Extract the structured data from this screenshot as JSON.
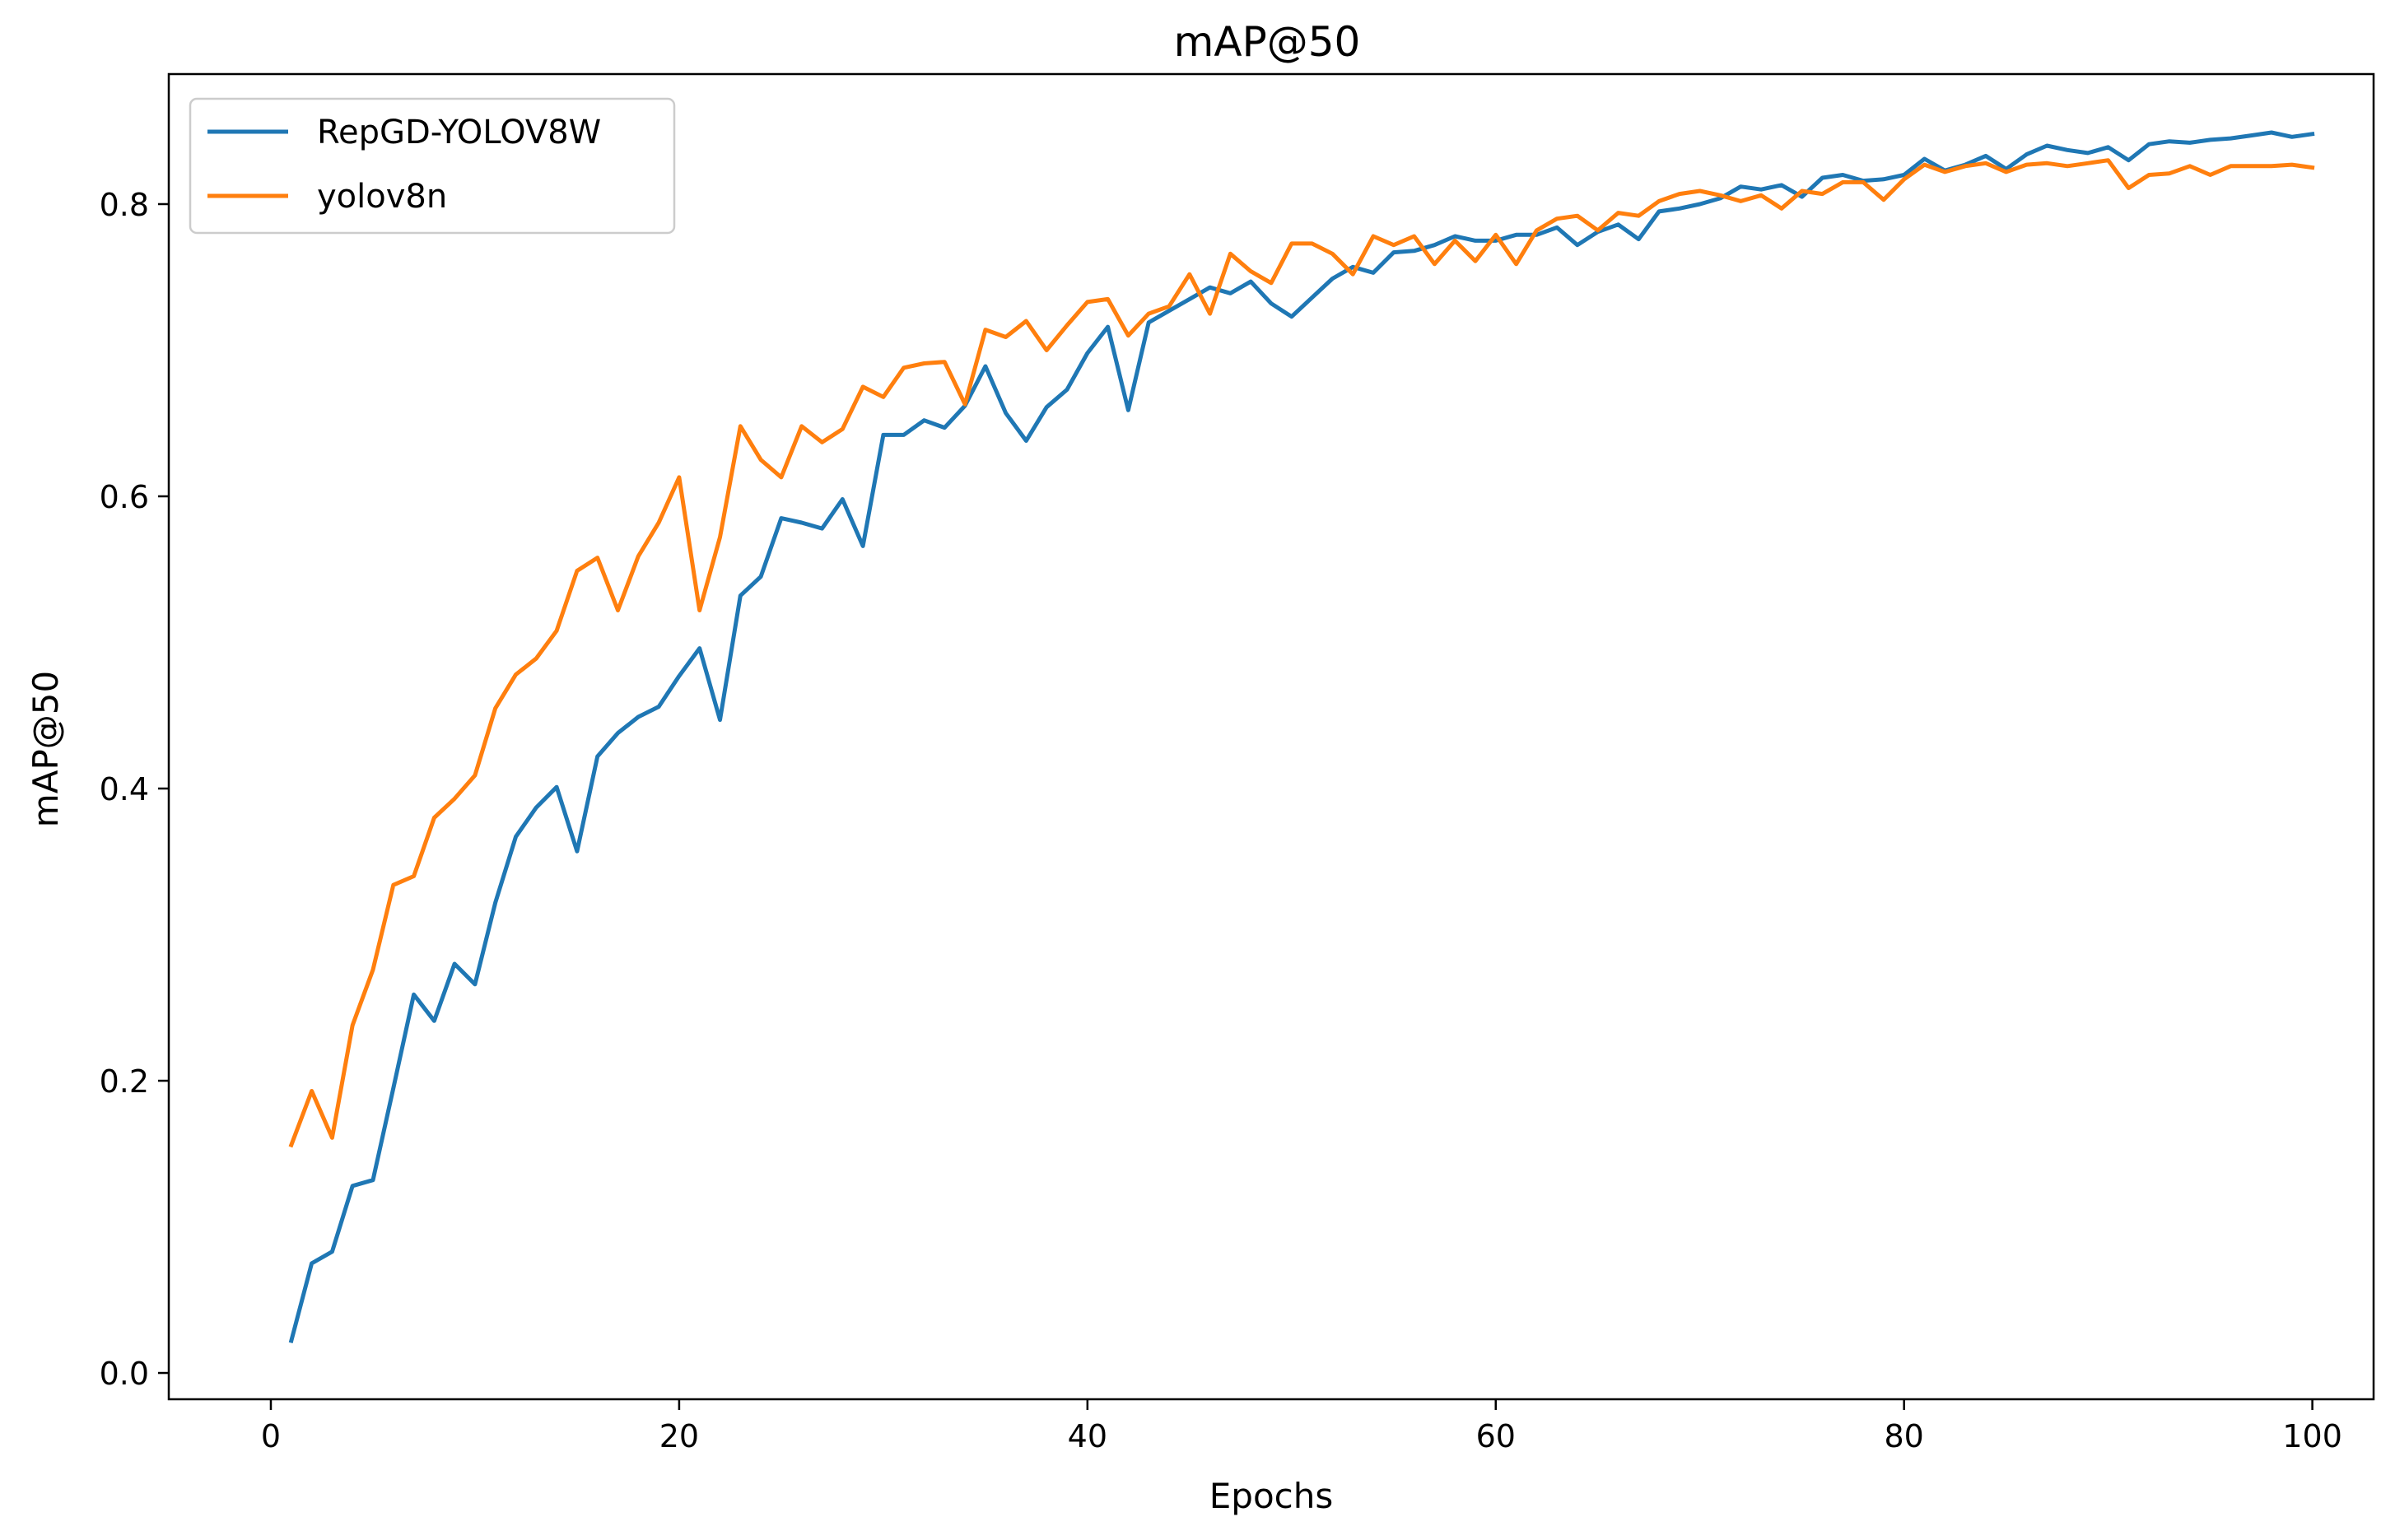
{
  "chart_data": {
    "type": "line",
    "title": "mAP@50",
    "xlabel": "Epochs",
    "ylabel": "mAP@50",
    "xlim": [
      -5,
      103
    ],
    "ylim": [
      -0.018,
      0.889
    ],
    "xticks": [
      0,
      20,
      40,
      60,
      80,
      100
    ],
    "xtick_labels": [
      "0",
      "20",
      "40",
      "60",
      "80",
      "100"
    ],
    "yticks": [
      0.0,
      0.2,
      0.4,
      0.6,
      0.8
    ],
    "ytick_labels": [
      "0.0",
      "0.2",
      "0.4",
      "0.6",
      "0.8"
    ],
    "grid": false,
    "legend_position": "top-left",
    "x": [
      1,
      2,
      3,
      4,
      5,
      6,
      7,
      8,
      9,
      10,
      11,
      12,
      13,
      14,
      15,
      16,
      17,
      18,
      19,
      20,
      21,
      22,
      23,
      24,
      25,
      26,
      27,
      28,
      29,
      30,
      31,
      32,
      33,
      34,
      35,
      36,
      37,
      38,
      39,
      40,
      41,
      42,
      43,
      44,
      45,
      46,
      47,
      48,
      49,
      50,
      51,
      52,
      53,
      54,
      55,
      56,
      57,
      58,
      59,
      60,
      61,
      62,
      63,
      64,
      65,
      66,
      67,
      68,
      69,
      70,
      71,
      72,
      73,
      74,
      75,
      76,
      77,
      78,
      79,
      80,
      81,
      82,
      83,
      84,
      85,
      86,
      87,
      88,
      89,
      90,
      91,
      92,
      93,
      94,
      95,
      96,
      97,
      98,
      99,
      100
    ],
    "series": [
      {
        "name": "RepGD-YOLOV8W",
        "color": "#1f77b4",
        "values": [
          0.022,
          0.075,
          0.083,
          0.128,
          0.132,
          0.195,
          0.259,
          0.241,
          0.28,
          0.266,
          0.322,
          0.367,
          0.387,
          0.401,
          0.357,
          0.422,
          0.438,
          0.449,
          0.456,
          0.477,
          0.496,
          0.447,
          0.532,
          0.545,
          0.585,
          0.582,
          0.578,
          0.598,
          0.566,
          0.642,
          0.642,
          0.652,
          0.647,
          0.662,
          0.689,
          0.657,
          0.638,
          0.661,
          0.673,
          0.698,
          0.716,
          0.659,
          0.719,
          0.727,
          0.735,
          0.743,
          0.739,
          0.747,
          0.732,
          0.723,
          0.736,
          0.749,
          0.757,
          0.753,
          0.767,
          0.768,
          0.772,
          0.778,
          0.775,
          0.775,
          0.779,
          0.779,
          0.784,
          0.772,
          0.781,
          0.786,
          0.776,
          0.795,
          0.797,
          0.8,
          0.804,
          0.812,
          0.81,
          0.813,
          0.805,
          0.818,
          0.82,
          0.816,
          0.817,
          0.82,
          0.831,
          0.823,
          0.827,
          0.833,
          0.824,
          0.834,
          0.84,
          0.837,
          0.835,
          0.839,
          0.83,
          0.841,
          0.843,
          0.842,
          0.844,
          0.845,
          0.847,
          0.849,
          0.846,
          0.848
        ]
      },
      {
        "name": "yolov8n",
        "color": "#ff7f0e",
        "values": [
          0.156,
          0.193,
          0.161,
          0.238,
          0.276,
          0.334,
          0.34,
          0.38,
          0.393,
          0.409,
          0.455,
          0.478,
          0.489,
          0.508,
          0.549,
          0.558,
          0.522,
          0.559,
          0.582,
          0.613,
          0.522,
          0.572,
          0.648,
          0.625,
          0.613,
          0.648,
          0.637,
          0.646,
          0.675,
          0.668,
          0.688,
          0.691,
          0.692,
          0.663,
          0.714,
          0.709,
          0.72,
          0.7,
          0.717,
          0.733,
          0.735,
          0.71,
          0.725,
          0.73,
          0.752,
          0.725,
          0.766,
          0.754,
          0.746,
          0.773,
          0.773,
          0.766,
          0.752,
          0.778,
          0.772,
          0.778,
          0.759,
          0.775,
          0.761,
          0.779,
          0.759,
          0.782,
          0.79,
          0.792,
          0.782,
          0.794,
          0.792,
          0.802,
          0.807,
          0.809,
          0.806,
          0.802,
          0.806,
          0.797,
          0.809,
          0.807,
          0.815,
          0.815,
          0.803,
          0.817,
          0.827,
          0.822,
          0.826,
          0.828,
          0.822,
          0.827,
          0.828,
          0.826,
          0.828,
          0.83,
          0.811,
          0.82,
          0.821,
          0.826,
          0.82,
          0.826,
          0.826,
          0.826,
          0.827,
          0.825
        ]
      }
    ]
  }
}
